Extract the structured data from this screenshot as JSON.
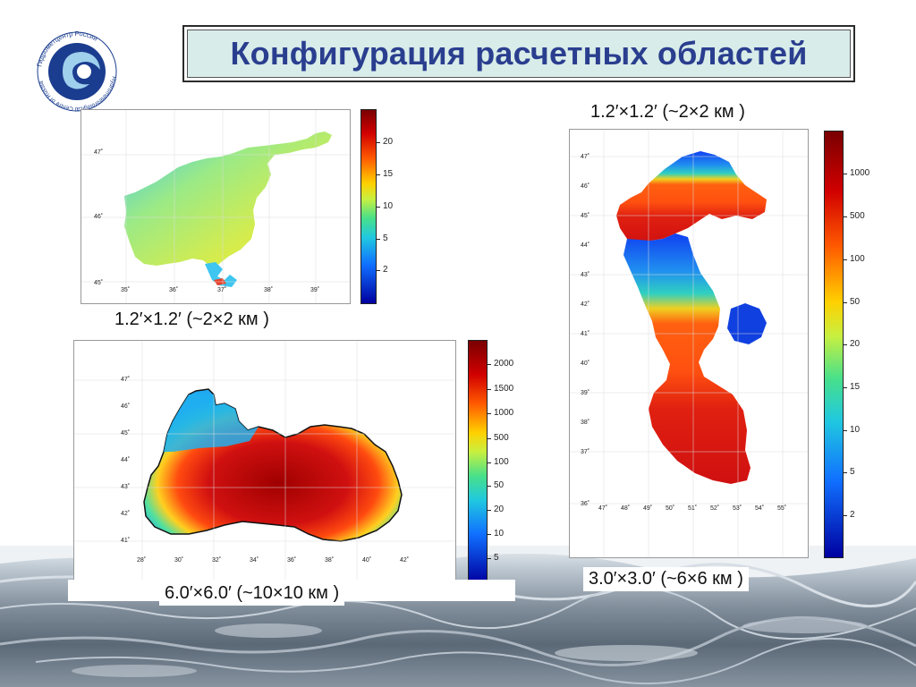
{
  "title": "Конфигурация расчетных областей",
  "logo": {
    "text_ru": "Гидрометцентр России",
    "text_en": "Hydrometeorological Centre of Russia",
    "colors": {
      "blue": "#1b3d8f",
      "light": "#9fd0ec"
    }
  },
  "panels": [
    {
      "id": "azov",
      "caption": "1.2′×1.2′ (~2×2 км )",
      "lat_ticks": [
        "47˚",
        "46˚",
        "45˚"
      ],
      "lon_ticks": [
        "35˚",
        "36˚",
        "37˚",
        "38˚",
        "39˚"
      ],
      "colorbar_ticks": [
        "20",
        "15",
        "10",
        "5",
        "2"
      ]
    },
    {
      "id": "black-sea",
      "caption": "6.0′×6.0′ (~10×10 км )",
      "lat_ticks": [
        "47˚",
        "46˚",
        "45˚",
        "44˚",
        "43˚",
        "42˚",
        "41˚"
      ],
      "lon_ticks": [
        "28˚",
        "30˚",
        "32˚",
        "34˚",
        "36˚",
        "38˚",
        "40˚",
        "42˚"
      ],
      "colorbar_ticks": [
        "2000",
        "1500",
        "1000",
        "500",
        "100",
        "50",
        "20",
        "10",
        "5"
      ]
    },
    {
      "id": "caspian",
      "caption_top": "1.2′×1.2′ (~2×2 км )",
      "caption": "3.0′×3.0′ (~6×6 км )",
      "lat_ticks": [
        "47˚",
        "46˚",
        "45˚",
        "44˚",
        "43˚",
        "42˚",
        "41˚",
        "40˚",
        "39˚",
        "38˚",
        "37˚",
        "36˚"
      ],
      "lon_ticks": [
        "47˚",
        "48˚",
        "49˚",
        "50˚",
        "51˚",
        "52˚",
        "53˚",
        "54˚",
        "55˚"
      ],
      "colorbar_ticks": [
        "1000",
        "500",
        "100",
        "50",
        "20",
        "15",
        "10",
        "5",
        "2"
      ]
    }
  ],
  "colors": {
    "title_text": "#2a3e8f",
    "title_bg": "#d8ece9"
  }
}
